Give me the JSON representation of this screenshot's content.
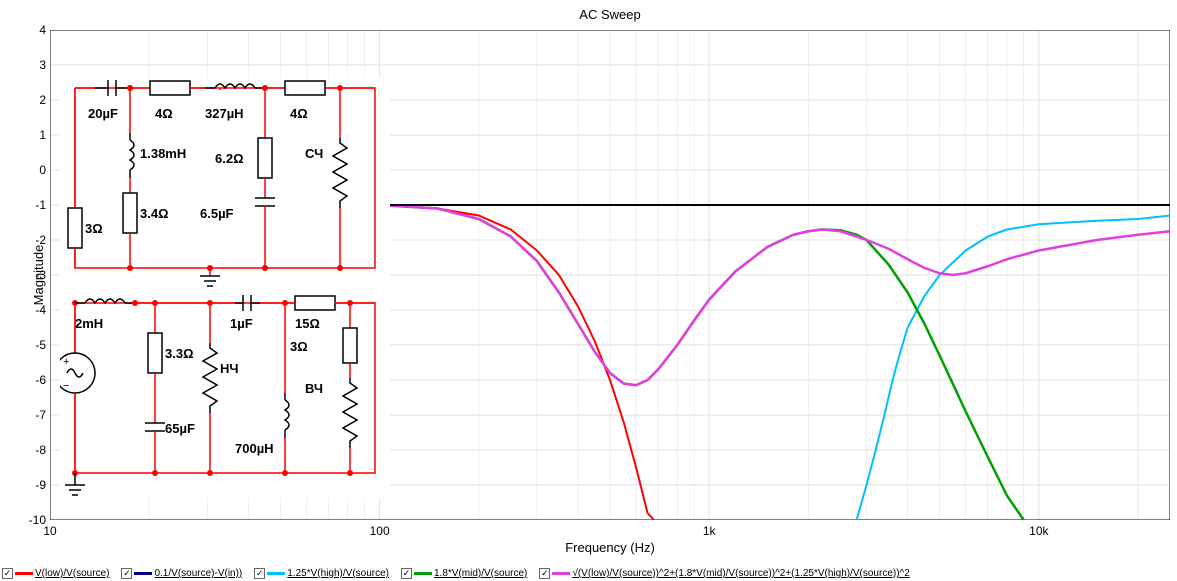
{
  "chart": {
    "title": "AC Sweep",
    "xlabel": "Frequency (Hz)",
    "ylabel": "Magnitude",
    "type": "line",
    "background_color": "#ffffff",
    "grid_color": "#e0e0e0",
    "border_color": "#000000",
    "x_scale": "log",
    "y_scale": "linear",
    "xlim": [
      10,
      25000
    ],
    "ylim": [
      -10,
      4
    ],
    "x_ticks": [
      10,
      100,
      1000,
      10000
    ],
    "x_tick_labels": [
      "10",
      "100",
      "1k",
      "10k"
    ],
    "y_ticks": [
      -10,
      -9,
      -8,
      -7,
      -6,
      -5,
      -4,
      -3,
      -2,
      -1,
      0,
      1,
      2,
      3,
      4
    ],
    "label_fontsize": 13,
    "tick_fontsize": 12
  },
  "series": [
    {
      "name": "red_low",
      "color": "#ff0000",
      "width": 2,
      "points": [
        [
          100,
          -1
        ],
        [
          150,
          -1.1
        ],
        [
          200,
          -1.3
        ],
        [
          250,
          -1.7
        ],
        [
          300,
          -2.3
        ],
        [
          350,
          -3.0
        ],
        [
          400,
          -3.9
        ],
        [
          450,
          -4.9
        ],
        [
          500,
          -6.0
        ],
        [
          550,
          -7.2
        ],
        [
          600,
          -8.5
        ],
        [
          650,
          -9.8
        ],
        [
          680,
          -10
        ]
      ]
    },
    {
      "name": "blue_diff",
      "color": "#00bfff",
      "width": 2,
      "points": [
        [
          2800,
          -10
        ],
        [
          3000,
          -9
        ],
        [
          3200,
          -8
        ],
        [
          3400,
          -7
        ],
        [
          3600,
          -6
        ],
        [
          3800,
          -5.2
        ],
        [
          4000,
          -4.5
        ],
        [
          4500,
          -3.6
        ],
        [
          5000,
          -3.0
        ],
        [
          6000,
          -2.3
        ],
        [
          7000,
          -1.9
        ],
        [
          8000,
          -1.7
        ],
        [
          10000,
          -1.55
        ],
        [
          15000,
          -1.45
        ],
        [
          20000,
          -1.4
        ],
        [
          25000,
          -1.3
        ]
      ]
    },
    {
      "name": "green_mid",
      "color": "#00a000",
      "width": 2.5,
      "points": [
        [
          100,
          -1
        ],
        [
          150,
          -1.1
        ],
        [
          200,
          -1.4
        ],
        [
          250,
          -1.9
        ],
        [
          300,
          -2.6
        ],
        [
          350,
          -3.5
        ],
        [
          400,
          -4.4
        ],
        [
          450,
          -5.2
        ],
        [
          500,
          -5.8
        ],
        [
          550,
          -6.1
        ],
        [
          600,
          -6.15
        ],
        [
          650,
          -6.0
        ],
        [
          700,
          -5.7
        ],
        [
          800,
          -5.0
        ],
        [
          900,
          -4.3
        ],
        [
          1000,
          -3.7
        ],
        [
          1200,
          -2.9
        ],
        [
          1500,
          -2.2
        ],
        [
          1800,
          -1.85
        ],
        [
          2000,
          -1.75
        ],
        [
          2200,
          -1.7
        ],
        [
          2500,
          -1.72
        ],
        [
          2800,
          -1.85
        ],
        [
          3000,
          -2.0
        ],
        [
          3500,
          -2.7
        ],
        [
          4000,
          -3.5
        ],
        [
          4500,
          -4.4
        ],
        [
          5000,
          -5.3
        ],
        [
          6000,
          -6.9
        ],
        [
          7000,
          -8.2
        ],
        [
          8000,
          -9.3
        ],
        [
          9000,
          -10
        ]
      ]
    },
    {
      "name": "magenta_sum",
      "color": "#e040e0",
      "width": 2.5,
      "points": [
        [
          100,
          -1
        ],
        [
          150,
          -1.1
        ],
        [
          200,
          -1.4
        ],
        [
          250,
          -1.9
        ],
        [
          300,
          -2.6
        ],
        [
          350,
          -3.5
        ],
        [
          400,
          -4.4
        ],
        [
          450,
          -5.2
        ],
        [
          500,
          -5.8
        ],
        [
          550,
          -6.1
        ],
        [
          600,
          -6.15
        ],
        [
          650,
          -6.0
        ],
        [
          700,
          -5.7
        ],
        [
          800,
          -5.0
        ],
        [
          900,
          -4.3
        ],
        [
          1000,
          -3.7
        ],
        [
          1200,
          -2.9
        ],
        [
          1500,
          -2.2
        ],
        [
          1800,
          -1.85
        ],
        [
          2000,
          -1.75
        ],
        [
          2200,
          -1.7
        ],
        [
          2500,
          -1.75
        ],
        [
          2800,
          -1.9
        ],
        [
          3000,
          -2.0
        ],
        [
          3200,
          -2.1
        ],
        [
          3500,
          -2.25
        ],
        [
          4000,
          -2.55
        ],
        [
          4500,
          -2.8
        ],
        [
          5000,
          -2.95
        ],
        [
          5500,
          -3.0
        ],
        [
          6000,
          -2.95
        ],
        [
          7000,
          -2.75
        ],
        [
          8000,
          -2.55
        ],
        [
          10000,
          -2.3
        ],
        [
          15000,
          -2.0
        ],
        [
          20000,
          -1.85
        ],
        [
          25000,
          -1.75
        ]
      ]
    },
    {
      "name": "black_ref",
      "color": "#000000",
      "width": 2,
      "points": [
        [
          100,
          -1
        ],
        [
          25000,
          -1
        ]
      ]
    }
  ],
  "legend": {
    "items": [
      {
        "checked": true,
        "color": "#ff0000",
        "label": "V(low)/V(source)"
      },
      {
        "checked": true,
        "color": "#000080",
        "label": "0.1/V(source)-V(in))"
      },
      {
        "checked": true,
        "color": "#00bfff",
        "label": "1.25*V(high)/V(source)"
      },
      {
        "checked": true,
        "color": "#00a000",
        "label": "1.8*V(mid)/V(source)"
      },
      {
        "checked": true,
        "color": "#e040e0",
        "label": "√(V(low)/V(source))^2+(1.8*V(mid)/V(source))^2+(1.25*V(high)/V(source))^2"
      }
    ]
  },
  "circuit": {
    "wire_color": "#ff0000",
    "components": {
      "top_cap": "20µF",
      "top_r1": "4Ω",
      "top_l1": "327µH",
      "top_r2": "4Ω",
      "top_l2": "1.38mH",
      "top_r3": "3Ω",
      "top_r4": "3.4Ω",
      "top_r5": "6.2Ω",
      "top_c2": "6.5µF",
      "top_load": "СЧ",
      "bot_l1": "2mH",
      "bot_r1": "3.3Ω",
      "bot_load1": "НЧ",
      "bot_c1": "1µF",
      "bot_r2": "15Ω",
      "bot_r3": "3Ω",
      "bot_load2": "ВЧ",
      "bot_c2": "65µF",
      "bot_l2": "700µH"
    }
  }
}
